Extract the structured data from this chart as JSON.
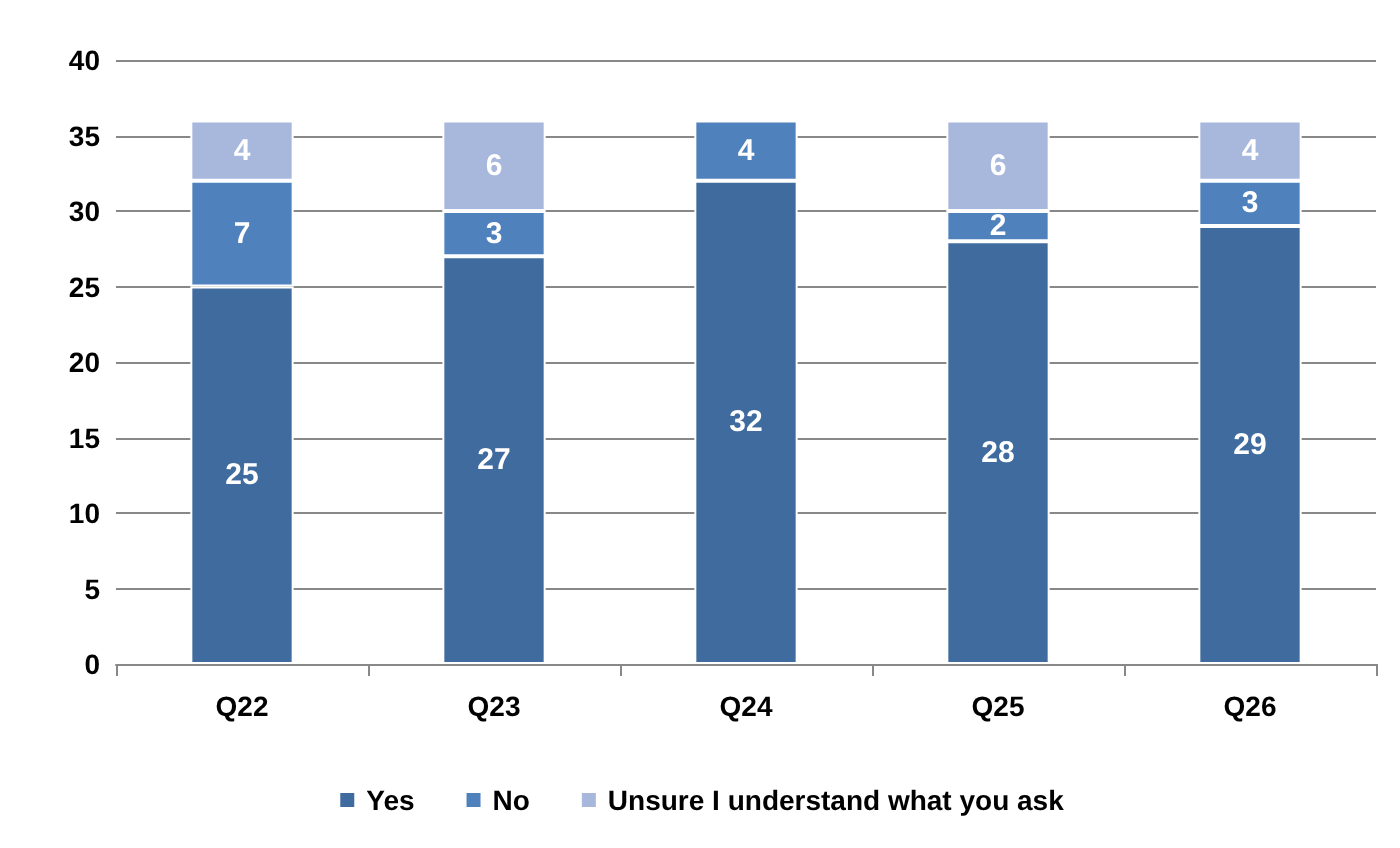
{
  "chart_data": {
    "type": "bar",
    "stacked": true,
    "categories": [
      "Q22",
      "Q23",
      "Q24",
      "Q25",
      "Q26"
    ],
    "series": [
      {
        "name": "Yes",
        "color": "#3f6b9f",
        "values": [
          25,
          27,
          32,
          28,
          29
        ]
      },
      {
        "name": "No",
        "color": "#4f81bd",
        "values": [
          7,
          3,
          4,
          2,
          3
        ]
      },
      {
        "name": "Unsure I understand what you ask",
        "color": "#a7b8dc",
        "values": [
          4,
          6,
          null,
          6,
          4
        ]
      }
    ],
    "ylim": [
      0,
      40
    ],
    "yticks": [
      0,
      5,
      10,
      15,
      20,
      25,
      30,
      35,
      40
    ],
    "grid": "y",
    "legend": "bottom",
    "data_labels": true
  }
}
